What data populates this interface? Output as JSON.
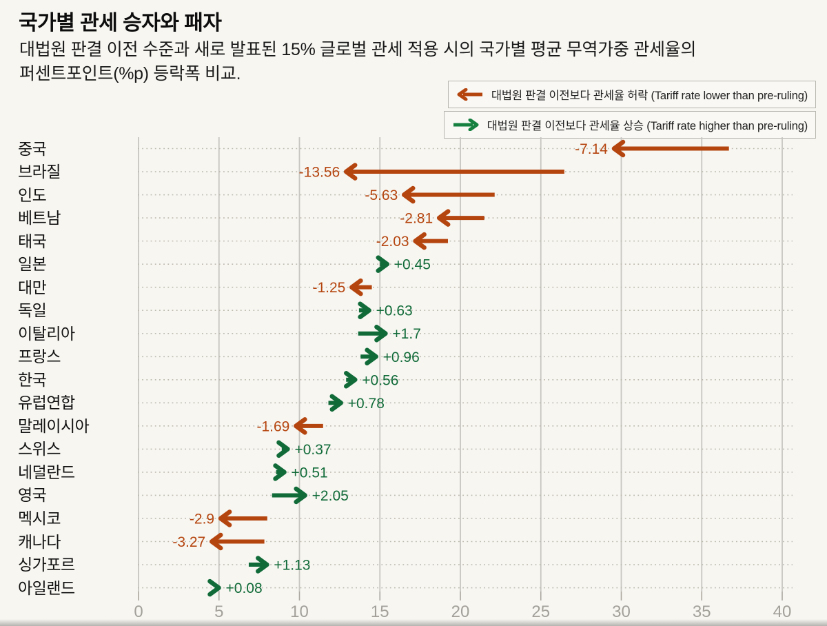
{
  "title": "국가별 관세 승자와 패자",
  "subtitle_line1": "대법원 판결 이전 수준과 새로 발표된 15% 글로벌 관세 적용 시의 국가별 평균 무역가중 관세율의",
  "subtitle_line2": "퍼센트포인트(%p) 등락폭 비교.",
  "legend": {
    "down_label": "대법원 판결 이전보다 관세율 허락 (Tariff rate lower than pre-ruling)",
    "up_label": "대법원 판결 이전보다 관세율 상승 (Tariff rate higher than pre-ruling)"
  },
  "chart_data": {
    "type": "arrow",
    "title": "국가별 관세 승자와 패자",
    "xlabel": "",
    "ylabel": "",
    "x_ticks": [
      0,
      5,
      10,
      15,
      20,
      25,
      30,
      35,
      40
    ],
    "xlim": [
      0,
      40.6
    ],
    "unit": "%p",
    "colors": {
      "down": "#b5450f",
      "up": "#116b39",
      "grid": "#c7c6c0",
      "dotted": "#bdb9ae",
      "axis_text": "#a2a099",
      "tick": "#a9a79f"
    },
    "rows": [
      {
        "country": "중국",
        "change": "-7.14",
        "from": 36.69,
        "to": 29.55,
        "direction": "down"
      },
      {
        "country": "브라질",
        "change": "-13.56",
        "from": 26.46,
        "to": 12.9,
        "direction": "down"
      },
      {
        "country": "인도",
        "change": "-5.63",
        "from": 22.13,
        "to": 16.5,
        "direction": "down"
      },
      {
        "country": "베트남",
        "change": "-2.81",
        "from": 21.49,
        "to": 18.68,
        "direction": "down"
      },
      {
        "country": "태국",
        "change": "-2.03",
        "from": 19.23,
        "to": 17.2,
        "direction": "down"
      },
      {
        "country": "일본",
        "change": "+0.45",
        "from": 15.0,
        "to": 15.45,
        "direction": "up"
      },
      {
        "country": "대만",
        "change": "-1.25",
        "from": 14.5,
        "to": 13.25,
        "direction": "down"
      },
      {
        "country": "독일",
        "change": "+0.63",
        "from": 13.7,
        "to": 14.33,
        "direction": "up"
      },
      {
        "country": "이탈리아",
        "change": "+1.7",
        "from": 13.65,
        "to": 15.35,
        "direction": "up"
      },
      {
        "country": "프랑스",
        "change": "+0.96",
        "from": 13.8,
        "to": 14.76,
        "direction": "up"
      },
      {
        "country": "한국",
        "change": "+0.56",
        "from": 12.9,
        "to": 13.46,
        "direction": "up"
      },
      {
        "country": "유럽연합",
        "change": "+0.78",
        "from": 11.8,
        "to": 12.58,
        "direction": "up"
      },
      {
        "country": "말레이시아",
        "change": "-1.69",
        "from": 11.47,
        "to": 9.78,
        "direction": "down"
      },
      {
        "country": "스위스",
        "change": "+0.37",
        "from": 8.9,
        "to": 9.27,
        "direction": "up"
      },
      {
        "country": "네덜란드",
        "change": "+0.51",
        "from": 8.55,
        "to": 9.06,
        "direction": "up"
      },
      {
        "country": "영국",
        "change": "+2.05",
        "from": 8.3,
        "to": 10.35,
        "direction": "up"
      },
      {
        "country": "멕시코",
        "change": "-2.9",
        "from": 8.0,
        "to": 5.1,
        "direction": "down"
      },
      {
        "country": "캐나다",
        "change": "-3.27",
        "from": 7.82,
        "to": 4.55,
        "direction": "down"
      },
      {
        "country": "싱가포르",
        "change": "+1.13",
        "from": 6.85,
        "to": 7.98,
        "direction": "up"
      },
      {
        "country": "아일랜드",
        "change": "+0.08",
        "from": 4.91,
        "to": 4.99,
        "direction": "up"
      }
    ]
  }
}
